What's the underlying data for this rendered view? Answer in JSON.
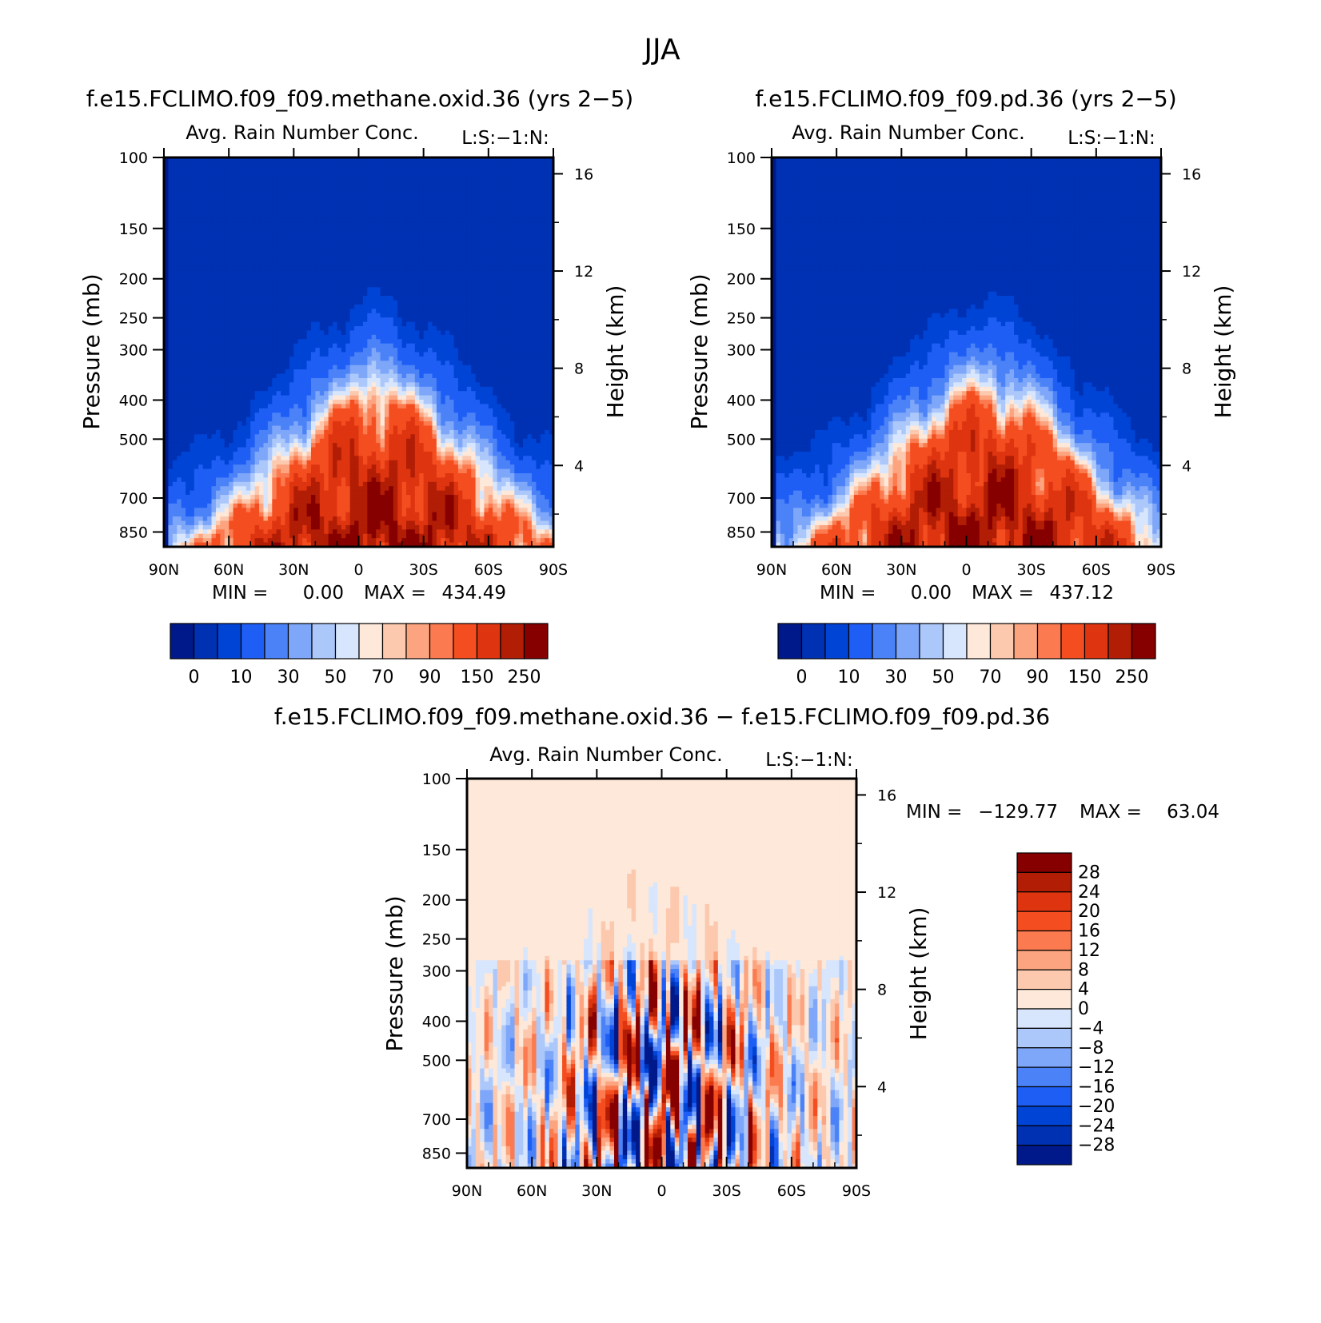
{
  "figure_title": "JJA",
  "chart_data": [
    {
      "type": "heatmap",
      "title": "f.e15.FCLIMO.f09_f09.methane.oxid.36 (yrs 2−5)",
      "subtitle": "Avg. Rain Number Conc.",
      "corner_label": "L:S:−1:N:",
      "ylabel": "Pressure (mb)",
      "ylabel_right": "Height (km)",
      "x_ticks": [
        "90N",
        "60N",
        "30N",
        "0",
        "30S",
        "60S",
        "90S"
      ],
      "x_range": [
        90,
        -90
      ],
      "y_ticks": [
        100,
        150,
        200,
        250,
        300,
        400,
        500,
        700,
        850
      ],
      "y_range": [
        100,
        925
      ],
      "y_right_ticks": [
        4,
        8,
        12,
        16
      ],
      "min_label": "MIN =",
      "min_value": "0.00",
      "max_label": "MAX =",
      "max_value": "434.49",
      "colorbar_labels": [
        "0",
        "10",
        "30",
        "50",
        "70",
        "90",
        "150",
        "250"
      ],
      "colorbar_levels": [
        0,
        5,
        10,
        20,
        30,
        40,
        50,
        60,
        70,
        80,
        90,
        100,
        150,
        200,
        250
      ],
      "colors": [
        "#00198a",
        "#0031b3",
        "#0044d6",
        "#1f5ef5",
        "#4b82f7",
        "#7ea6f9",
        "#acc8fb",
        "#d7e6fc",
        "#fde8d9",
        "#fcc8ae",
        "#fca47f",
        "#fb7a4f",
        "#f44e20",
        "#de3410",
        "#b11d05",
        "#870000"
      ],
      "peak_lat": -8,
      "mid_value": 70
    },
    {
      "type": "heatmap",
      "title": "f.e15.FCLIMO.f09_f09.pd.36 (yrs 2−5)",
      "subtitle": "Avg. Rain Number Conc.",
      "corner_label": "L:S:−1:N:",
      "ylabel": "Pressure (mb)",
      "ylabel_right": "Height (km)",
      "x_ticks": [
        "90N",
        "60N",
        "30N",
        "0",
        "30S",
        "60S",
        "90S"
      ],
      "x_range": [
        90,
        -90
      ],
      "y_ticks": [
        100,
        150,
        200,
        250,
        300,
        400,
        500,
        700,
        850
      ],
      "y_range": [
        100,
        925
      ],
      "y_right_ticks": [
        4,
        8,
        12,
        16
      ],
      "min_label": "MIN =",
      "min_value": "0.00",
      "max_label": "MAX =",
      "max_value": "437.12",
      "colorbar_labels": [
        "0",
        "10",
        "30",
        "50",
        "70",
        "90",
        "150",
        "250"
      ],
      "colorbar_levels": [
        0,
        5,
        10,
        20,
        30,
        40,
        50,
        60,
        70,
        80,
        90,
        100,
        150,
        200,
        250
      ],
      "colors": [
        "#00198a",
        "#0031b3",
        "#0044d6",
        "#1f5ef5",
        "#4b82f7",
        "#7ea6f9",
        "#acc8fb",
        "#d7e6fc",
        "#fde8d9",
        "#fcc8ae",
        "#fca47f",
        "#fb7a4f",
        "#f44e20",
        "#de3410",
        "#b11d05",
        "#870000"
      ],
      "peak_lat": -8,
      "mid_value": 70
    },
    {
      "type": "heatmap",
      "title": "f.e15.FCLIMO.f09_f09.methane.oxid.36 − f.e15.FCLIMO.f09_f09.pd.36",
      "subtitle": "Avg. Rain Number Conc.",
      "corner_label": "L:S:−1:N:",
      "ylabel": "Pressure (mb)",
      "ylabel_right": "Height (km)",
      "x_ticks": [
        "90N",
        "60N",
        "30N",
        "0",
        "30S",
        "60S",
        "90S"
      ],
      "x_range": [
        90,
        -90
      ],
      "y_ticks": [
        100,
        150,
        200,
        250,
        300,
        400,
        500,
        700,
        850
      ],
      "y_range": [
        100,
        925
      ],
      "y_right_ticks": [
        4,
        8,
        12,
        16
      ],
      "min_label": "MIN =",
      "min_value": "−129.77",
      "max_label": "MAX =",
      "max_value": "63.04",
      "colorbar_labels": [
        "28",
        "24",
        "20",
        "16",
        "12",
        "8",
        "4",
        "0",
        "−4",
        "−8",
        "−12",
        "−16",
        "−20",
        "−24",
        "−28"
      ],
      "colorbar_levels": [
        -28,
        -24,
        -20,
        -16,
        -12,
        -8,
        -4,
        0,
        4,
        8,
        12,
        16,
        20,
        24,
        28
      ],
      "colors": [
        "#00198a",
        "#0031b3",
        "#0044d6",
        "#1f5ef5",
        "#4b82f7",
        "#7ea6f9",
        "#acc8fb",
        "#d7e6fc",
        "#fde8d9",
        "#fcc8ae",
        "#fca47f",
        "#fb7a4f",
        "#f44e20",
        "#de3410",
        "#b11d05",
        "#870000"
      ],
      "background_value": 2
    }
  ]
}
